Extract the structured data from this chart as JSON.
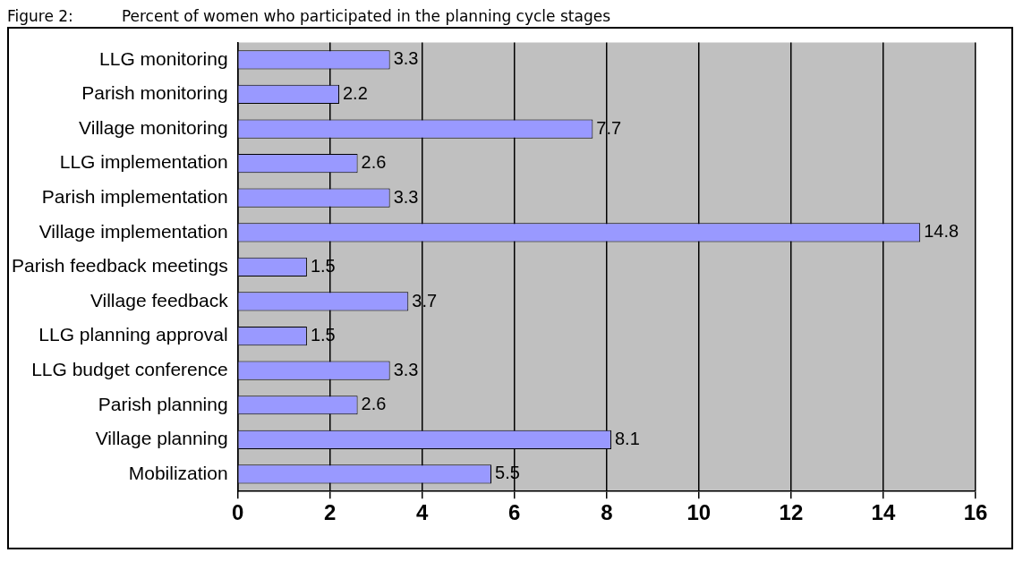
{
  "chart_data": {
    "type": "bar",
    "orientation": "horizontal",
    "title": "Figure 2:          Percent of women who participated in the planning cycle stages",
    "categories": [
      "LLG monitoring",
      "Parish monitoring",
      "Village monitoring",
      "LLG implementation",
      "Parish implementation",
      "Village implementation",
      "Parish feedback meetings",
      "Village feedback",
      "LLG planning approval",
      "LLG budget conference",
      "Parish planning",
      "Village planning",
      "Mobilization"
    ],
    "values": [
      3.3,
      2.2,
      7.7,
      2.6,
      3.3,
      14.8,
      1.5,
      3.7,
      1.5,
      3.3,
      2.6,
      8.1,
      5.5
    ],
    "color": "#9999ff",
    "xlim": [
      0,
      16
    ],
    "xticks": [
      0,
      2,
      4,
      6,
      8,
      10,
      12,
      14,
      16
    ],
    "grid": "x",
    "data_labels": true,
    "legend": false
  }
}
